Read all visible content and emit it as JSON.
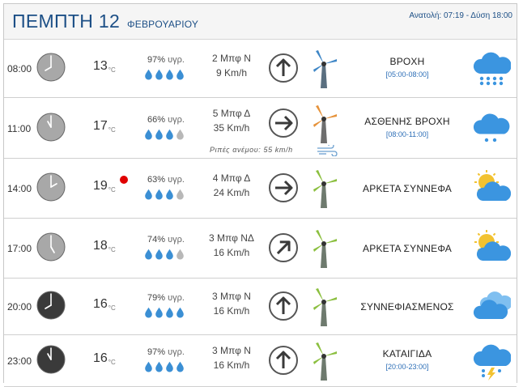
{
  "header": {
    "day": "ΠΕΜΠΤΗ 12",
    "month": "ΦΕΒΡΟΥΑΡΙΟΥ",
    "sun": "Ανατολή: 07:19 - Δύση 18:00"
  },
  "rows": [
    {
      "time": "08:00",
      "temp": "13",
      "temp_unit": "°C",
      "humidity": "97%",
      "humidity_unit": "υγρ.",
      "drops_full": 4,
      "beaufort": "2 Μπφ Ν",
      "speed": "9 Km/h",
      "arrow": "up-arrow-icon",
      "turbine": "blue-wind-turbine-icon",
      "desc": "ΒΡΟΧΗ",
      "range": "[05:00-08:00]",
      "weather_icon": "rain-icon",
      "clock": "light"
    },
    {
      "time": "11:00",
      "temp": "17",
      "temp_unit": "°C",
      "humidity": "66%",
      "humidity_unit": "υγρ.",
      "drops_full": 3,
      "beaufort": "5 Μπφ Δ",
      "speed": "35 Km/h",
      "gust": "Ριπές ανέμου: 55 km/h",
      "arrow": "right-arrow-icon",
      "turbine": "orange-wind-turbine-icon",
      "desc": "ΑΣΘΕΝΗΣ ΒΡΟΧΗ",
      "range": "[08:00-11:00]",
      "weather_icon": "light-rain-icon",
      "clock": "light"
    },
    {
      "time": "14:00",
      "temp": "19",
      "temp_unit": "°C",
      "humidity": "63%",
      "humidity_unit": "υγρ.",
      "drops_full": 3,
      "beaufort": "4 Μπφ Δ",
      "speed": "24 Km/h",
      "arrow": "right-arrow-icon",
      "turbine": "green-wind-turbine-icon",
      "desc": "ΑΡΚΕΤΑ ΣΥΝΝΕΦΑ",
      "weather_icon": "partly-cloudy-icon",
      "clock": "light",
      "hot": true
    },
    {
      "time": "17:00",
      "temp": "18",
      "temp_unit": "°C",
      "humidity": "74%",
      "humidity_unit": "υγρ.",
      "drops_full": 3,
      "beaufort": "3 Μπφ ΝΔ",
      "speed": "16 Km/h",
      "arrow": "up-right-arrow-icon",
      "turbine": "green-wind-turbine-icon",
      "desc": "ΑΡΚΕΤΑ ΣΥΝΝΕΦΑ",
      "weather_icon": "partly-cloudy-icon",
      "clock": "light"
    },
    {
      "time": "20:00",
      "temp": "16",
      "temp_unit": "°C",
      "humidity": "79%",
      "humidity_unit": "υγρ.",
      "drops_full": 4,
      "beaufort": "3 Μπφ Ν",
      "speed": "16 Km/h",
      "arrow": "up-arrow-icon",
      "turbine": "green-wind-turbine-icon",
      "desc": "ΣΥΝΝΕΦΙΑΣΜΕΝΟΣ",
      "weather_icon": "cloudy-icon",
      "clock": "dark"
    },
    {
      "time": "23:00",
      "temp": "16",
      "temp_unit": "°C",
      "humidity": "97%",
      "humidity_unit": "υγρ.",
      "drops_full": 4,
      "beaufort": "3 Μπφ Ν",
      "speed": "16 Km/h",
      "arrow": "up-arrow-icon",
      "turbine": "green-wind-turbine-icon",
      "desc": "ΚΑΤΑΙΓΙΔΑ",
      "range": "[20:00-23:00]",
      "weather_icon": "thunderstorm-icon",
      "clock": "dark"
    }
  ],
  "colors": {
    "title": "#1c4f86",
    "range": "#2e6fb7",
    "drop_full": "#3b8fd4",
    "drop_empty": "#b8b8b8",
    "clock_light": "#a8a8a8",
    "clock_dark": "#3a3a3a",
    "hot_dot": "#e00000"
  }
}
